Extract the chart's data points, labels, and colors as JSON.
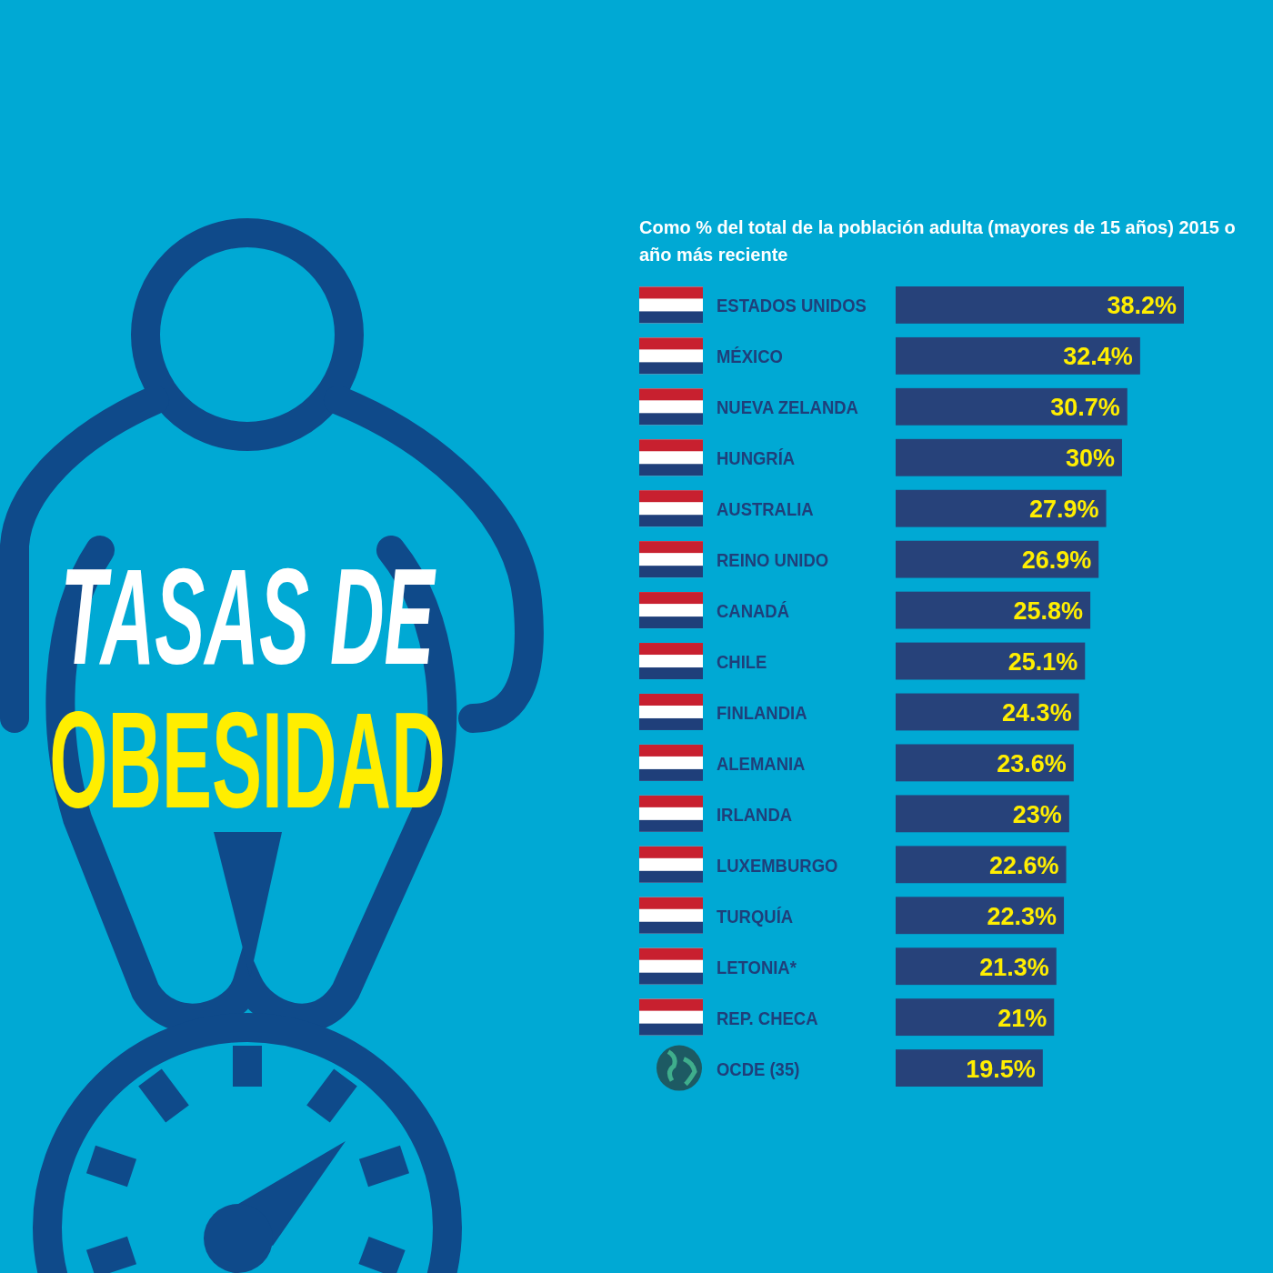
{
  "chart_data": {
    "type": "bar",
    "orientation": "horizontal",
    "title": "TASAS DE OBESIDAD",
    "subtitle": "Como % del total de la población adulta (mayores de 15 años) 2015 o año más reciente",
    "categories": [
      "ESTADOS UNIDOS",
      "MÉXICO",
      "NUEVA ZELANDA",
      "HUNGRÍA",
      "AUSTRALIA",
      "REINO UNIDO",
      "CANADÁ",
      "CHILE",
      "FINLANDIA",
      "ALEMANIA",
      "IRLANDA",
      "LUXEMBURGO",
      "TURQUÍA",
      "LETONIA*",
      "REP. CHECA",
      "OCDE (35)"
    ],
    "values": [
      38.2,
      32.4,
      30.7,
      30,
      27.9,
      26.9,
      25.8,
      25.1,
      24.3,
      23.6,
      23,
      22.6,
      22.3,
      21.3,
      21,
      19.5
    ],
    "value_labels": [
      "38.2%",
      "32.4%",
      "30.7%",
      "30%",
      "27.9%",
      "26.9%",
      "25.8%",
      "25.1%",
      "24.3%",
      "23.6%",
      "23%",
      "22.6%",
      "22.3%",
      "21.3%",
      "21%",
      "19.5%"
    ],
    "color": "#27427a"
  }
}
